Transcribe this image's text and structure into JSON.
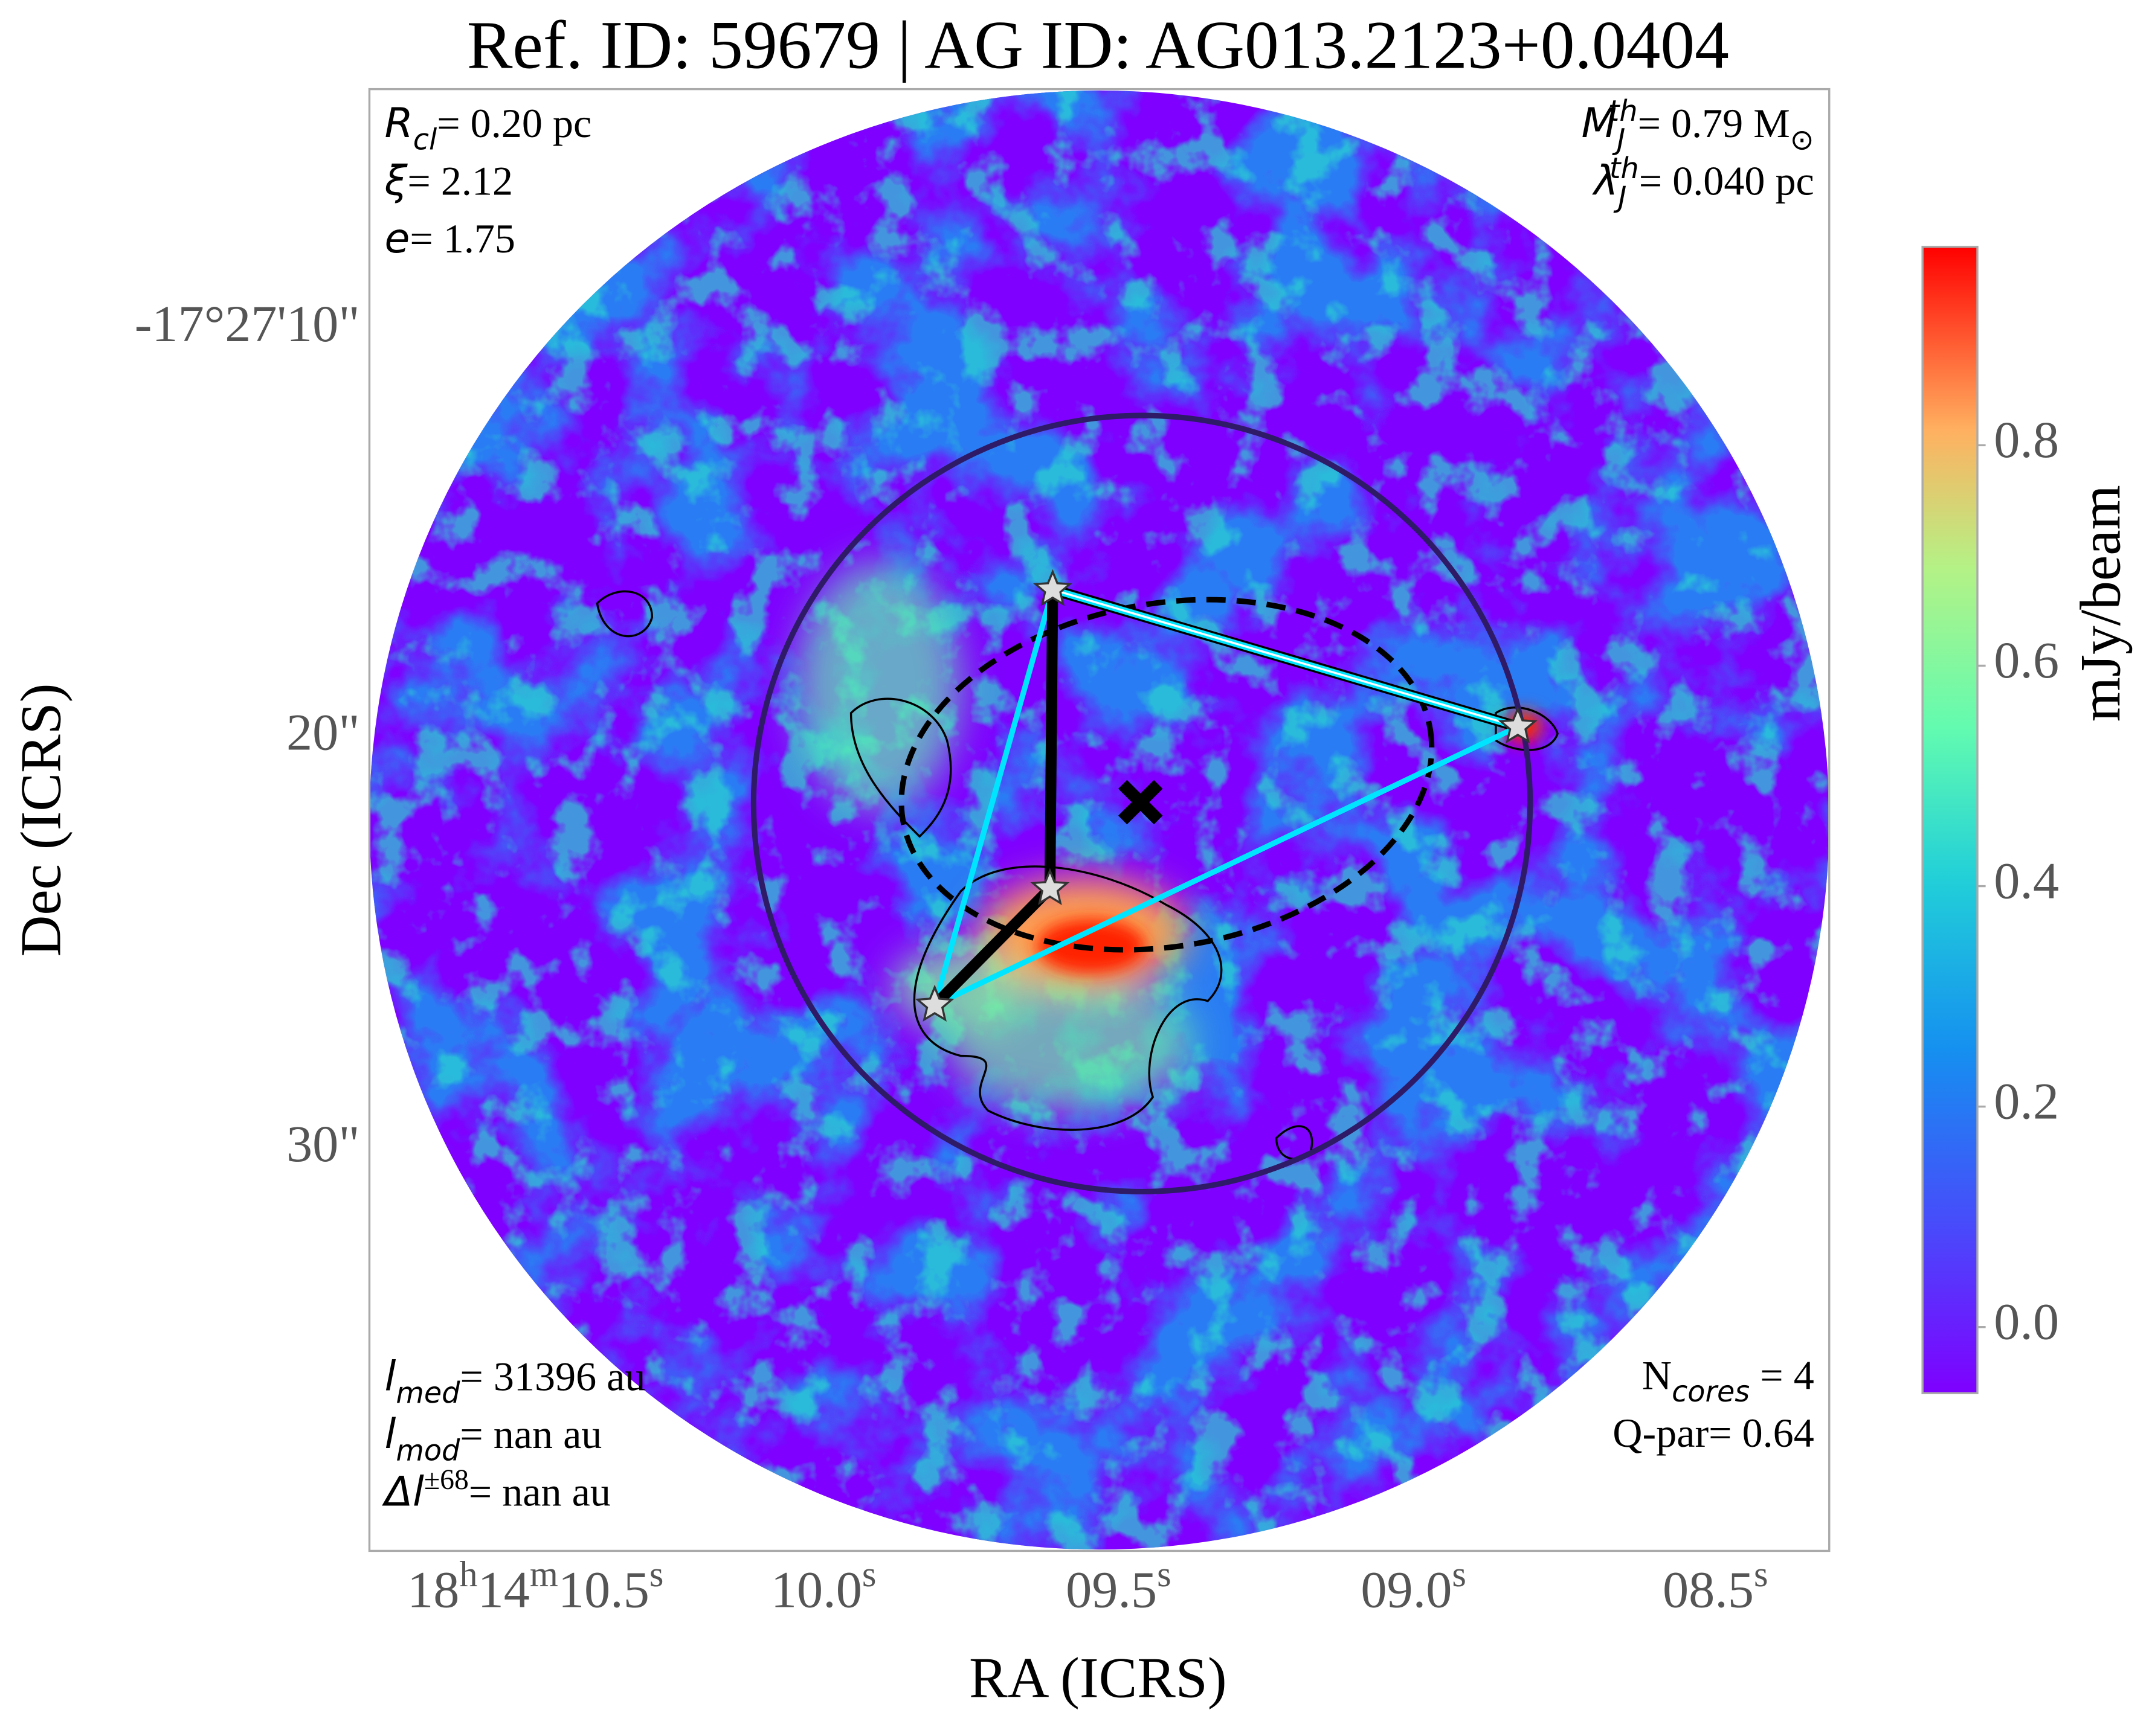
{
  "chart_data": {
    "type": "image",
    "title": "Ref. ID: 59679 | AG ID: AG013.2123+0.0404",
    "x_label": "RA (ICRS)",
    "y_label": "Dec (ICRS)",
    "x_tick_labels": [
      [
        "18",
        "h",
        "14",
        "m",
        "10.5",
        "s"
      ],
      [
        "10.0",
        "s"
      ],
      [
        "09.5",
        "s"
      ],
      [
        "09.0",
        "s"
      ],
      [
        "08.5",
        "s"
      ]
    ],
    "y_tick_labels": [
      "-17°27'10\"",
      "20\"",
      "30\""
    ],
    "colorbar": {
      "label": "mJy/beam",
      "ylim": [
        -0.06,
        0.98
      ],
      "yticks": [
        {
          "value": 0,
          "label": "0.0"
        },
        0.2,
        0.4,
        0.6,
        0.8
      ]
    },
    "annotations": {
      "top_left": [
        [
          {
            "text": "R",
            "style": "italic"
          },
          {
            "text": "cl",
            "style": "italic-sub"
          },
          {
            "text": "= 0.20 pc",
            "style": "normal"
          }
        ],
        [
          {
            "text": "ξ",
            "style": "italic"
          },
          {
            "text": "= 2.12",
            "style": "normal"
          }
        ],
        [
          {
            "text": "e",
            "style": "italic"
          },
          {
            "text": "= 1.75",
            "style": "normal"
          }
        ]
      ],
      "top_right": [
        [
          {
            "text": "M",
            "style": "italic"
          },
          {
            "text": "J",
            "style": "italic-sub"
          },
          {
            "text": "th",
            "style": "italic-sup"
          },
          {
            "text": "= 0.79 M",
            "style": "normal"
          },
          {
            "text": "⊙",
            "style": "sub"
          }
        ],
        [
          {
            "text": "λ",
            "style": "italic"
          },
          {
            "text": "J",
            "style": "italic-sub"
          },
          {
            "text": "th",
            "style": "italic-sup"
          },
          {
            "text": "= 0.040 pc",
            "style": "normal"
          }
        ]
      ],
      "bottom_left": [
        [
          {
            "text": "l",
            "style": "italic"
          },
          {
            "text": "med",
            "style": "italic-sub"
          },
          {
            "text": "= 31396 au",
            "style": "normal"
          }
        ],
        [
          {
            "text": "l",
            "style": "italic"
          },
          {
            "text": "mod",
            "style": "italic-sub"
          },
          {
            "text": "= nan au",
            "style": "normal"
          }
        ],
        [
          {
            "text": "Δl",
            "style": "italic"
          },
          {
            "text": "±68",
            "style": "sup"
          },
          {
            "text": "= nan au",
            "style": "normal"
          }
        ]
      ],
      "bottom_right": [
        [
          {
            "text": "N",
            "style": "normal"
          },
          {
            "text": "cores",
            "style": "italic-sub"
          },
          {
            "text": " = 4",
            "style": "normal"
          }
        ],
        [
          {
            "text": "Q-par= 0.64",
            "style": "normal"
          }
        ]
      ]
    }
  }
}
